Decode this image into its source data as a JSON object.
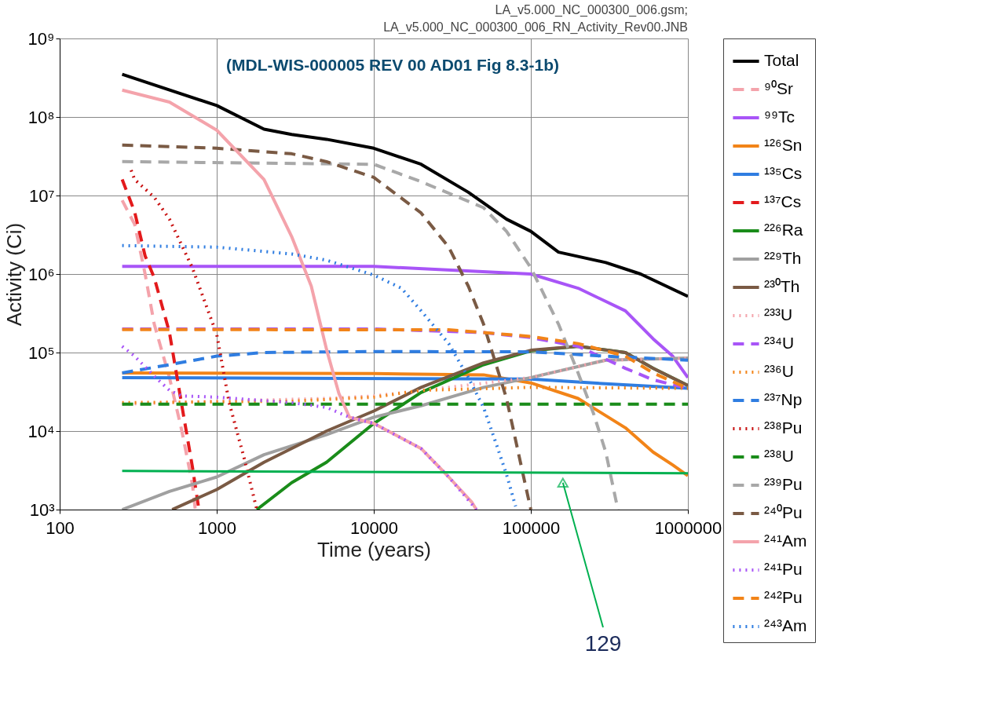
{
  "chart_data": {
    "type": "line",
    "title": "(MDL-WIS-000005 REV 00 AD01 Fig 8.3-1b)",
    "xlabel": "Time (years)",
    "ylabel": "Activity (Ci)",
    "log": "xy",
    "grid": true,
    "legend": "right",
    "xlim": [
      100,
      1000000
    ],
    "xticks": [
      100,
      1000,
      10000,
      100000,
      1000000
    ],
    "ylim": [
      1000,
      1000000000
    ],
    "yticks": [
      {
        "value": 1000,
        "label": "10³"
      },
      {
        "value": 10000,
        "label": "10⁴"
      },
      {
        "value": 100000,
        "label": "10⁵"
      },
      {
        "value": 1000000,
        "label": "10⁶"
      },
      {
        "value": 10000000,
        "label": "10⁷"
      },
      {
        "value": 100000000,
        "label": "10⁸"
      },
      {
        "value": 1000000000,
        "label": "10⁹"
      }
    ],
    "annotations": [
      "LA_v5.000_NC_000300_006.gsm;",
      "LA_v5.000_NC_000300_006_RN_Activity_Rev00.JNB",
      {
        "text": "129",
        "x": 160000,
        "y": 2200
      }
    ],
    "series": [
      {
        "name": "Total",
        "color": "#000000",
        "line_style": "solid",
        "x": [
          250,
          1000,
          2000,
          3000,
          5000,
          10000,
          20000,
          40000,
          70000,
          100000,
          150000,
          300000,
          500000,
          1000000
        ],
        "values": [
          350000000.0,
          140000000.0,
          70000000.0,
          60000000.0,
          52000000.0,
          40000000.0,
          25000000.0,
          11000000.0,
          5000000.0,
          3500000.0,
          1900000.0,
          1400000.0,
          1000000.0,
          520000.0
        ]
      },
      {
        "name": "⁹⁰Sr",
        "color": "#f4a3ab",
        "line_style": "dashed",
        "x": [
          250,
          300,
          350,
          400,
          500,
          600,
          700,
          730
        ],
        "values": [
          8700000.0,
          4300000.0,
          1000000.0,
          230000.0,
          48000.0,
          10000.0,
          2100.0,
          1000.0
        ]
      },
      {
        "name": "⁹⁹Tc",
        "color": "#a855f7",
        "line_style": "solid",
        "x": [
          250,
          10000,
          100000,
          200000,
          400000,
          600000,
          800000,
          1000000
        ],
        "values": [
          1250000.0,
          1250000.0,
          1000000.0,
          660000.0,
          340000.0,
          150000.0,
          90000.0,
          48000.0
        ]
      },
      {
        "name": "¹²⁶Sn",
        "color": "#f28418",
        "line_style": "solid",
        "x": [
          250,
          10000,
          50000,
          100000,
          200000,
          400000,
          600000,
          800000,
          1000000
        ],
        "values": [
          55000.0,
          54000.0,
          52000.0,
          41000.0,
          26000.0,
          11000.0,
          5400.0,
          3700.0,
          2700.0
        ]
      },
      {
        "name": "¹³⁵Cs",
        "color": "#2f7de1",
        "line_style": "solid",
        "x": [
          250,
          100000,
          300000,
          1000000
        ],
        "values": [
          48000.0,
          46000.0,
          40000.0,
          35000.0
        ]
      },
      {
        "name": "¹³⁷Cs",
        "color": "#e31a1c",
        "line_style": "dashed",
        "x": [
          250,
          300,
          350,
          400,
          500,
          600,
          700,
          770
        ],
        "values": [
          16000000.0,
          6200000.0,
          1700000.0,
          900000.0,
          180000.0,
          21000.0,
          3500.0,
          1000.0
        ]
      },
      {
        "name": "²²⁶Ra",
        "color": "#1a8c1a",
        "line_style": "solid",
        "x": [
          1800,
          3000,
          5000,
          10000,
          20000,
          50000,
          100000,
          200000,
          400000,
          600000,
          1000000
        ],
        "values": [
          1000.0,
          2200.0,
          4000.0,
          12500.0,
          31000.0,
          70000.0,
          105000.0,
          120000.0,
          100000.0,
          63000.0,
          38000.0
        ]
      },
      {
        "name": "²²⁹Th",
        "color": "#a0a0a0",
        "line_style": "solid",
        "x": [
          250,
          500,
          1000,
          2000,
          5000,
          10000,
          20000,
          50000,
          100000,
          300000,
          1000000
        ],
        "values": [
          1000.0,
          1700.0,
          2600.0,
          5000.0,
          9000.0,
          15000.0,
          21000.0,
          36000.0,
          48000.0,
          80000.0,
          85000.0
        ]
      },
      {
        "name": "²³⁰Th",
        "color": "#7a5a44",
        "line_style": "solid",
        "x": [
          520,
          1000,
          2000,
          5000,
          10000,
          20000,
          50000,
          100000,
          200000,
          400000,
          600000,
          1000000
        ],
        "values": [
          1000.0,
          1800.0,
          4000.0,
          10000.0,
          18000.0,
          36000.0,
          74000.0,
          107000.0,
          120000.0,
          100000.0,
          63000.0,
          38000.0
        ]
      },
      {
        "name": "²³³U",
        "color": "#f4a3ab",
        "line_style": "dotted",
        "x": [
          250,
          1000,
          5000,
          10000,
          30000,
          100000,
          300000,
          1000000
        ],
        "values": [
          22000.0,
          24000.0,
          26000.0,
          28000.0,
          36000.0,
          48000.0,
          80000.0,
          85000.0
        ]
      },
      {
        "name": "²³⁴U",
        "color": "#a855f7",
        "line_style": "dashed",
        "x": [
          250,
          10000,
          50000,
          100000,
          200000,
          400000,
          600000,
          1000000
        ],
        "values": [
          200000.0,
          200000.0,
          180000.0,
          155000.0,
          120000.0,
          63000.0,
          45000.0,
          35000.0
        ]
      },
      {
        "name": "²³⁶U",
        "color": "#f28418",
        "line_style": "dotted",
        "x": [
          250,
          3000,
          10000,
          20000,
          100000,
          1000000
        ],
        "values": [
          23000.0,
          24000.0,
          27000.0,
          33000.0,
          36000.0,
          35000.0
        ]
      },
      {
        "name": "²³⁷Np",
        "color": "#2f7de1",
        "line_style": "dashed",
        "x": [
          250,
          500,
          1000,
          2000,
          10000,
          100000,
          300000,
          1000000
        ],
        "values": [
          55000.0,
          70000.0,
          90000.0,
          100000.0,
          103000.0,
          102000.0,
          90000.0,
          80000.0
        ]
      },
      {
        "name": "²³⁸Pu",
        "color": "#c81010",
        "line_style": "dotted",
        "x": [
          285,
          300,
          400,
          500,
          700,
          1000,
          1200,
          1500,
          1800
        ],
        "values": [
          21000000.0,
          16000000.0,
          9500000.0,
          5000000.0,
          1200000.0,
          170000.0,
          23000.0,
          4400.0,
          1000.0
        ]
      },
      {
        "name": "²³⁸U",
        "color": "#1a8c1a",
        "line_style": "dashed",
        "x": [
          250,
          1000000
        ],
        "values": [
          22000.0,
          22000.0
        ]
      },
      {
        "name": "²³⁹Pu",
        "color": "#a8a8a8",
        "line_style": "dashed",
        "x": [
          250,
          10000,
          20000,
          50000,
          70000,
          100000,
          150000,
          200000,
          250000,
          300000,
          350000,
          360000
        ],
        "values": [
          27000000.0,
          25000000.0,
          15000000.0,
          7000000.0,
          3500000.0,
          1200000.0,
          230000.0,
          55000.0,
          17000.0,
          5400.0,
          1250.0,
          1000.0
        ]
      },
      {
        "name": "²⁴⁰Pu",
        "color": "#7a5a44",
        "line_style": "dashed",
        "x": [
          250,
          1000,
          3000,
          5000,
          10000,
          20000,
          30000,
          40000,
          50000,
          70000,
          90000,
          100000
        ],
        "values": [
          44000000.0,
          40000000.0,
          34000000.0,
          27000000.0,
          17000000.0,
          6000000.0,
          2200000.0,
          700000.0,
          230000.0,
          26000.0,
          2600.0,
          1000.0
        ]
      },
      {
        "name": "²⁴¹Am",
        "color": "#f4a3ab",
        "line_style": "solid",
        "x": [
          250,
          500,
          1000,
          2000,
          3000,
          4000,
          5000,
          6000,
          7000,
          10000,
          20000,
          30000,
          42000,
          45000
        ],
        "values": [
          220000000.0,
          155000000.0,
          68000000.0,
          16000000.0,
          3000000.0,
          700000.0,
          110000.0,
          30000.0,
          15000.0,
          12500.0,
          6000.0,
          2600.0,
          1250.0,
          1000.0
        ]
      },
      {
        "name": "²⁴¹Pu",
        "color": "#a855f7",
        "line_style": "dotted",
        "x": [
          250,
          300,
          400,
          500,
          600,
          1000,
          3000,
          5000,
          7000,
          10000,
          20000,
          30000,
          45000
        ],
        "values": [
          120000.0,
          90000.0,
          50000.0,
          33000.0,
          28000.0,
          27000.0,
          23000.0,
          20000.0,
          15000.0,
          12500.0,
          6000.0,
          2600.0,
          1000.0
        ]
      },
      {
        "name": "²⁴²Pu",
        "color": "#f28418",
        "line_style": "dashed",
        "x": [
          250,
          30000,
          50000,
          100000,
          200000,
          400000,
          600000,
          1000000
        ],
        "values": [
          196000.0,
          195000.0,
          180000.0,
          160000.0,
          130000.0,
          90000.0,
          55000.0,
          35000.0
        ]
      },
      {
        "name": "²⁴³Am",
        "color": "#2f7de1",
        "line_style": "dotted",
        "x": [
          250,
          1000,
          3000,
          5000,
          10000,
          15000,
          20000,
          30000,
          40000,
          50000,
          60000,
          70000,
          80000
        ],
        "values": [
          2300000.0,
          2200000.0,
          1800000.0,
          1500000.0,
          970000.0,
          660000.0,
          340000.0,
          130000.0,
          48000.0,
          20000.0,
          7000.0,
          2800.0,
          1100.0
        ]
      },
      {
        "color": "#00b050",
        "line_style": "solid",
        "x": [
          250,
          1000000
        ],
        "values": [
          3100.0,
          2900.0
        ]
      }
    ]
  }
}
